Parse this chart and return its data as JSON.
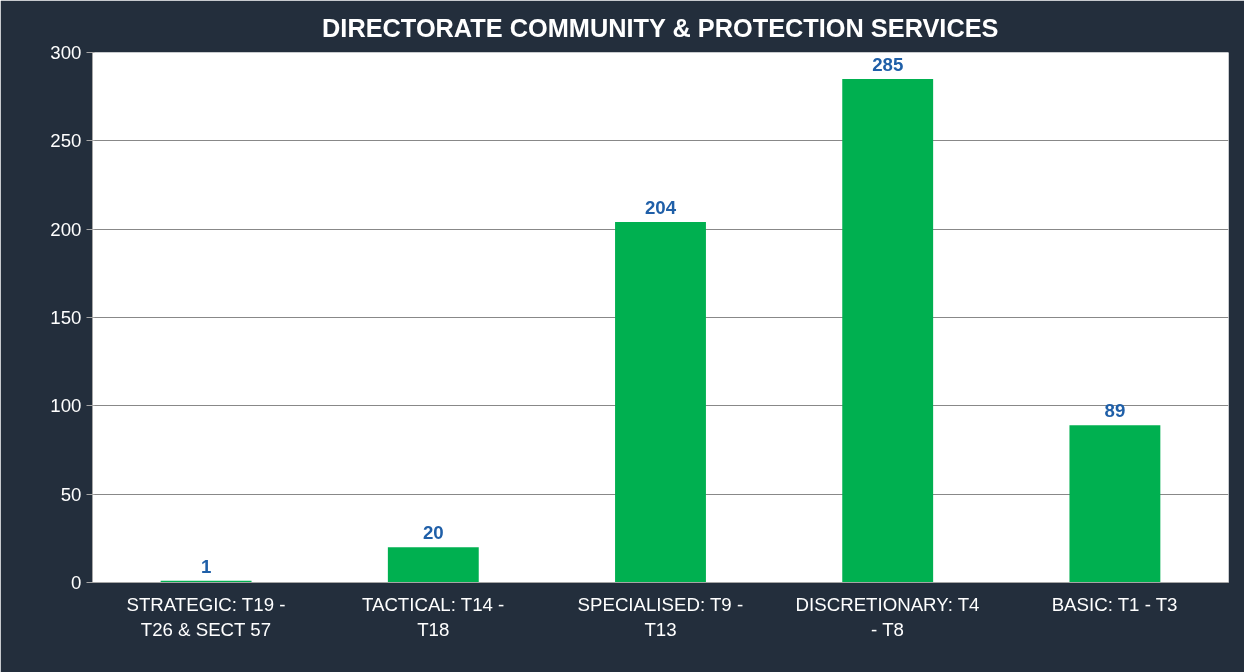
{
  "chart_data": {
    "type": "bar",
    "title": "DIRECTORATE COMMUNITY & PROTECTION SERVICES",
    "categories": [
      "STRATEGIC: T19 - T26 & SECT 57",
      "TACTICAL: T14 - T18",
      "SPECIALISED: T9 - T13",
      "DISCRETIONARY: T4 - T8",
      "BASIC: T1 - T3"
    ],
    "values": [
      1,
      20,
      204,
      285,
      89
    ],
    "color": "#00b050",
    "ylim": [
      0,
      300
    ],
    "yticks": [
      0,
      50,
      100,
      150,
      200,
      250,
      300
    ],
    "grid": "y",
    "data_labels": true
  }
}
